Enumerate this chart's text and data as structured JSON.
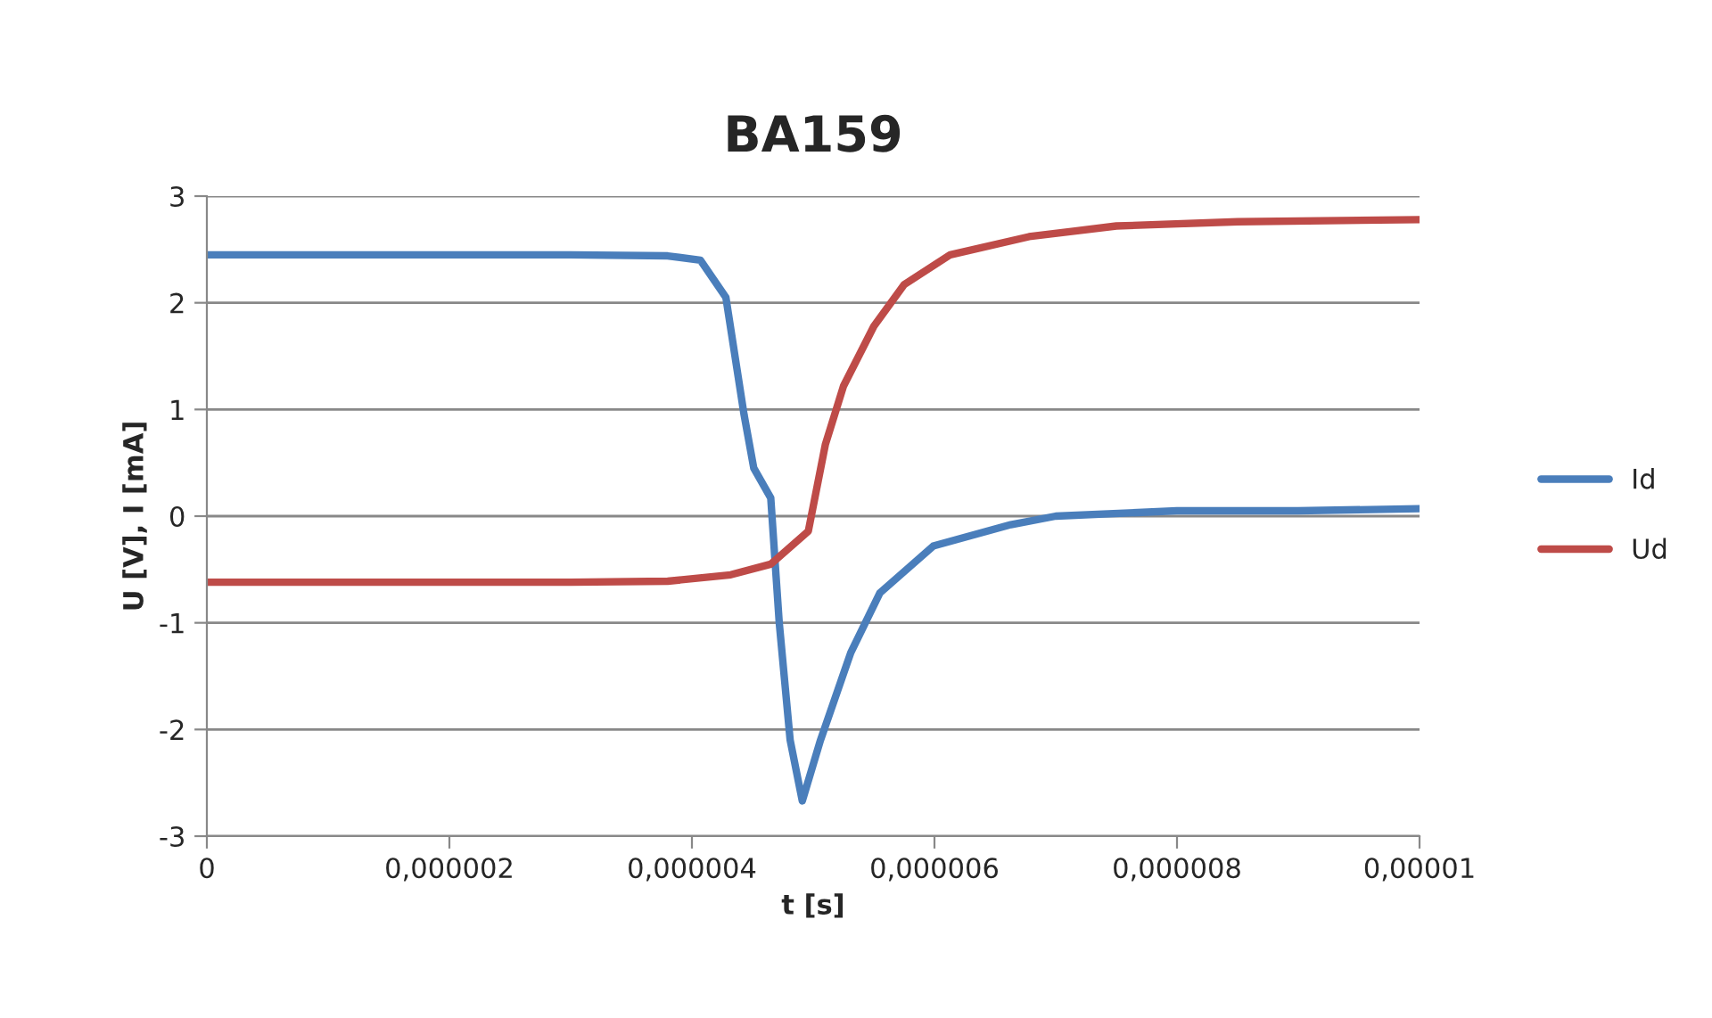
{
  "chart_data": {
    "type": "line",
    "title": "BA159",
    "xlabel": "t [s]",
    "ylabel": "U [V], I [mA]",
    "xlim": [
      0,
      1e-05
    ],
    "ylim": [
      -3,
      3
    ],
    "xticks": [
      0,
      {
        "value": 2e-06,
        "label": "0,000002"
      },
      {
        "value": 4e-06,
        "label": "0,000004"
      },
      {
        "value": 6e-06,
        "label": "0,000006"
      },
      {
        "value": 8e-06,
        "label": "0,000008"
      },
      {
        "value": 1e-05,
        "label": "0,00001"
      }
    ],
    "yticks": [
      -3,
      -2,
      -1,
      0,
      1,
      2,
      3
    ],
    "grid": "y",
    "legend": "right",
    "marker": "none",
    "line_style": "solid",
    "series": [
      {
        "name": "Id",
        "color": "#4a7ebb",
        "x": [
          0,
          1e-06,
          2e-06,
          3e-06,
          3.8e-06,
          4.07e-06,
          4.28e-06,
          4.43e-06,
          4.51e-06,
          4.65e-06,
          4.72e-06,
          4.81e-06,
          4.91e-06,
          5.06e-06,
          5.31e-06,
          5.55e-06,
          5.99e-06,
          6.63e-06,
          7e-06,
          8e-06,
          9e-06,
          1e-05
        ],
        "values": [
          2.45,
          2.45,
          2.45,
          2.45,
          2.44,
          2.4,
          2.05,
          0.95,
          0.45,
          0.17,
          -1.0,
          -2.1,
          -2.67,
          -2.1,
          -1.28,
          -0.72,
          -0.28,
          -0.08,
          0.0,
          0.05,
          0.05,
          0.07
        ]
      },
      {
        "name": "Ud",
        "color": "#be4b48",
        "x": [
          0,
          1e-06,
          2e-06,
          3e-06,
          3.8e-06,
          4.32e-06,
          4.65e-06,
          4.96e-06,
          5.1e-06,
          5.25e-06,
          5.5e-06,
          5.75e-06,
          6.13e-06,
          6.78e-06,
          7.5e-06,
          8.5e-06,
          1e-05
        ],
        "values": [
          -0.62,
          -0.62,
          -0.62,
          -0.62,
          -0.61,
          -0.55,
          -0.45,
          -0.14,
          0.67,
          1.22,
          1.78,
          2.17,
          2.45,
          2.62,
          2.72,
          2.76,
          2.78
        ]
      }
    ]
  }
}
